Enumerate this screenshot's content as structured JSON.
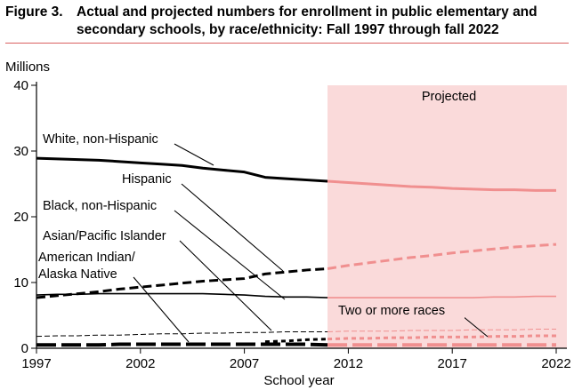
{
  "header": {
    "figure_label": "Figure 3.",
    "title": "Actual and projected numbers for enrollment in public elementary and secondary schools, by race/ethnicity: Fall 1997 through fall 2022"
  },
  "chart_data": {
    "type": "line",
    "title": "Actual and projected numbers for enrollment in public elementary and secondary schools, by race/ethnicity: Fall 1997 through fall 2022",
    "ylabel": "Millions",
    "xlabel": "School year",
    "xlim": [
      1997,
      2022
    ],
    "ylim": [
      0,
      40
    ],
    "x_ticks": [
      1997,
      2002,
      2007,
      2012,
      2017,
      2022
    ],
    "y_ticks": [
      0,
      10,
      20,
      30,
      40
    ],
    "projected_start": 2011,
    "projected_label": "Projected",
    "colors": {
      "actual": "#000000",
      "projected": "#f08f8f",
      "band": "#fadada"
    },
    "series": [
      {
        "name": "White, non-Hispanic",
        "style": "solid-thick",
        "label": [
          "White, non-Hispanic"
        ],
        "x": [
          1997,
          1998,
          1999,
          2000,
          2001,
          2002,
          2003,
          2004,
          2005,
          2006,
          2007,
          2008,
          2009,
          2010,
          2011,
          2012,
          2013,
          2014,
          2015,
          2016,
          2017,
          2018,
          2019,
          2020,
          2021,
          2022
        ],
        "values": [
          28.9,
          28.8,
          28.7,
          28.6,
          28.4,
          28.2,
          28.0,
          27.8,
          27.4,
          27.1,
          26.8,
          26.0,
          25.8,
          25.6,
          25.4,
          25.2,
          25.0,
          24.8,
          24.6,
          24.5,
          24.3,
          24.2,
          24.1,
          24.1,
          24.0,
          24.0
        ]
      },
      {
        "name": "Hispanic",
        "style": "dashed-thick",
        "label": [
          "Hispanic"
        ],
        "x": [
          1997,
          1998,
          1999,
          2000,
          2001,
          2002,
          2003,
          2004,
          2005,
          2006,
          2007,
          2008,
          2009,
          2010,
          2011,
          2012,
          2013,
          2014,
          2015,
          2016,
          2017,
          2018,
          2019,
          2020,
          2021,
          2022
        ],
        "values": [
          7.7,
          8.0,
          8.3,
          8.6,
          9.0,
          9.3,
          9.6,
          9.9,
          10.2,
          10.4,
          10.6,
          11.3,
          11.6,
          11.9,
          12.1,
          12.6,
          13.0,
          13.4,
          13.8,
          14.1,
          14.5,
          14.8,
          15.1,
          15.4,
          15.6,
          15.8
        ]
      },
      {
        "name": "Black, non-Hispanic",
        "style": "solid-thin",
        "label": [
          "Black, non-Hispanic"
        ],
        "x": [
          1997,
          1998,
          1999,
          2000,
          2001,
          2002,
          2003,
          2004,
          2005,
          2006,
          2007,
          2008,
          2009,
          2010,
          2011,
          2012,
          2013,
          2014,
          2015,
          2016,
          2017,
          2018,
          2019,
          2020,
          2021,
          2022
        ],
        "values": [
          8.1,
          8.2,
          8.2,
          8.3,
          8.3,
          8.3,
          8.3,
          8.3,
          8.3,
          8.2,
          8.1,
          7.9,
          7.8,
          7.8,
          7.7,
          7.7,
          7.7,
          7.7,
          7.7,
          7.7,
          7.7,
          7.7,
          7.8,
          7.8,
          7.9,
          7.9
        ]
      },
      {
        "name": "Asian/Pacific Islander",
        "style": "dashed-thin",
        "label": [
          "Asian/Pacific Islander"
        ],
        "x": [
          1997,
          1998,
          1999,
          2000,
          2001,
          2002,
          2003,
          2004,
          2005,
          2006,
          2007,
          2008,
          2009,
          2010,
          2011,
          2012,
          2013,
          2014,
          2015,
          2016,
          2017,
          2018,
          2019,
          2020,
          2021,
          2022
        ],
        "values": [
          1.8,
          1.9,
          1.9,
          2.0,
          2.0,
          2.1,
          2.2,
          2.2,
          2.3,
          2.3,
          2.4,
          2.4,
          2.5,
          2.5,
          2.5,
          2.6,
          2.6,
          2.6,
          2.7,
          2.7,
          2.7,
          2.8,
          2.8,
          2.8,
          2.9,
          2.9
        ]
      },
      {
        "name": "American Indian/Alaska Native",
        "style": "dashed-thick-long",
        "label": [
          "American Indian/",
          "Alaska Native"
        ],
        "x": [
          1997,
          1998,
          1999,
          2000,
          2001,
          2002,
          2003,
          2004,
          2005,
          2006,
          2007,
          2008,
          2009,
          2010,
          2011,
          2012,
          2013,
          2014,
          2015,
          2016,
          2017,
          2018,
          2019,
          2020,
          2021,
          2022
        ],
        "values": [
          0.5,
          0.5,
          0.5,
          0.5,
          0.6,
          0.6,
          0.6,
          0.6,
          0.6,
          0.6,
          0.6,
          0.6,
          0.6,
          0.6,
          0.5,
          0.5,
          0.5,
          0.5,
          0.5,
          0.5,
          0.5,
          0.5,
          0.5,
          0.5,
          0.5,
          0.5
        ]
      },
      {
        "name": "Two or more races",
        "style": "dashed-medium",
        "label": [
          "Two or more races"
        ],
        "x": [
          2008,
          2009,
          2010,
          2011,
          2012,
          2013,
          2014,
          2015,
          2016,
          2017,
          2018,
          2019,
          2020,
          2021,
          2022
        ],
        "values": [
          1.0,
          1.1,
          1.3,
          1.4,
          1.5,
          1.5,
          1.6,
          1.6,
          1.7,
          1.7,
          1.7,
          1.8,
          1.8,
          1.9,
          1.9
        ]
      }
    ]
  }
}
